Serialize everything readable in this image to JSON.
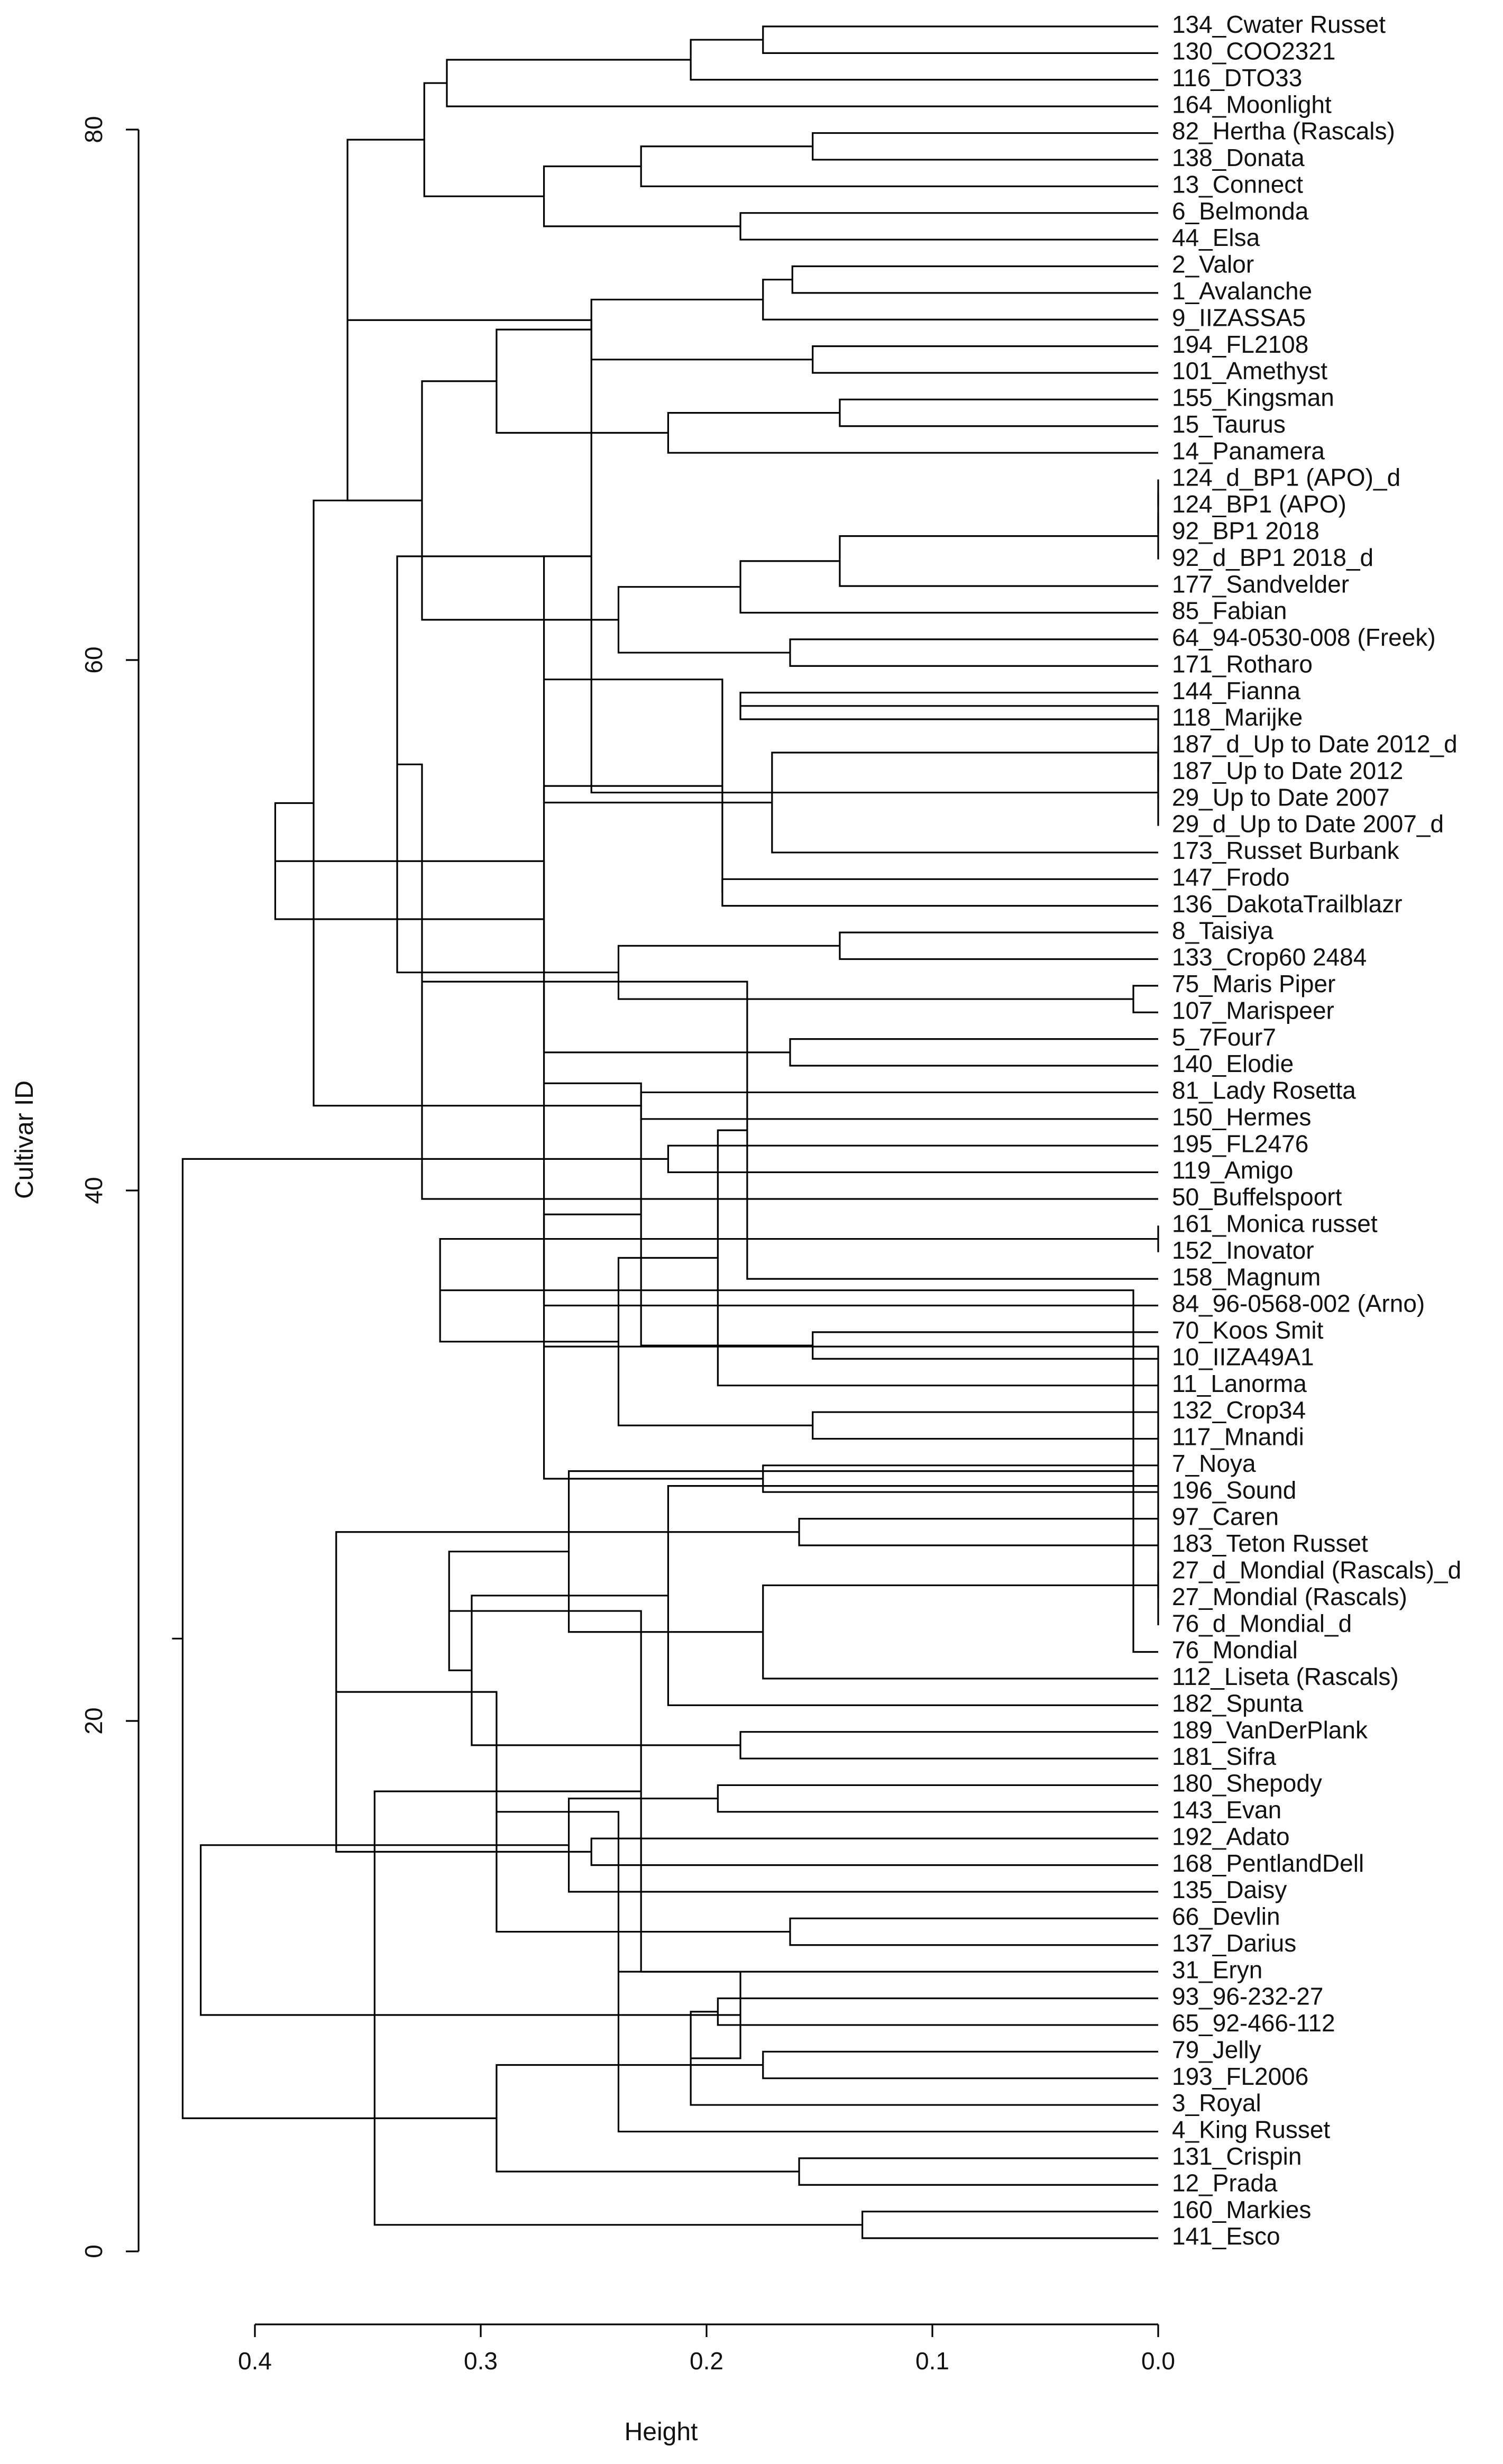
{
  "chart_data": {
    "type": "dendrogram",
    "orientation": "horizontal",
    "xlabel": "Height",
    "ylabel": "Cultivar ID",
    "x_ticks": [
      0.4,
      0.3,
      0.2,
      0.1,
      0.0
    ],
    "x_tick_labels": [
      "0.4",
      "0.3",
      "0.2",
      "0.1",
      "0.0"
    ],
    "y_ticks": [
      0,
      20,
      40,
      60,
      80
    ],
    "y_tick_labels": [
      "0",
      "20",
      "40",
      "60",
      "80"
    ],
    "x_range": [
      0.4,
      0.0
    ],
    "y_range": [
      0,
      80
    ],
    "leaves": [
      "134_Cwater Russet",
      "130_COO2321",
      "116_DTO33",
      "164_Moonlight",
      "82_Hertha (Rascals)",
      "138_Donata",
      "13_Connect",
      "6_Belmonda",
      "44_Elsa",
      "2_Valor",
      "1_Avalanche",
      "9_IIZASSA5",
      "194_FL2108",
      "101_Amethyst",
      "155_Kingsman",
      "15_Taurus",
      "14_Panamera",
      "124_d_BP1 (APO)_d",
      "124_BP1 (APO)",
      "92_BP1 2018",
      "92_d_BP1 2018_d",
      "177_Sandvelder",
      "85_Fabian",
      "64_94-0530-008 (Freek)",
      "171_Rotharo",
      "144_Fianna",
      "118_Marijke",
      "187_d_Up to Date 2012_d",
      "187_Up to Date 2012",
      "29_Up to Date 2007",
      "29_d_Up to Date 2007_d",
      "173_Russet Burbank",
      "147_Frodo",
      "136_DakotaTrailblazr",
      "8_Taisiya",
      "133_Crop60 2484",
      "75_Maris Piper",
      "107_Marispeer",
      "5_7Four7",
      "140_Elodie",
      "81_Lady Rosetta",
      "150_Hermes",
      "195_FL2476",
      "119_Amigo",
      "50_Buffelspoort",
      "161_Monica russet",
      "152_Inovator",
      "158_Magnum",
      "84_96-0568-002 (Arno)",
      "70_Koos Smit",
      "10_IIZA49A1",
      "11_Lanorma",
      "132_Crop34",
      "117_Mnandi",
      "7_Noya",
      "196_Sound",
      "97_Caren",
      "183_Teton Russet",
      "27_d_Mondial (Rascals)_d",
      "27_Mondial (Rascals)",
      "76_d_Mondial_d",
      "76_Mondial",
      "112_Liseta (Rascals)",
      "182_Spunta",
      "189_VanDerPlank",
      "181_Sifra",
      "180_Shepody",
      "143_Evan",
      "192_Adato",
      "168_PentlandDell",
      "135_Daisy",
      "66_Devlin",
      "137_Darius",
      "31_Eryn",
      "93_96-232-27",
      "65_92-466-112",
      "79_Jelly",
      "193_FL2006",
      "3_Royal",
      "4_King Russet",
      "131_Crispin",
      "12_Prada",
      "160_Markies",
      "141_Esco"
    ],
    "merges": [
      [
        0,
        1,
        0.175
      ],
      [
        84,
        2,
        0.207
      ],
      [
        85,
        3,
        0.315
      ],
      [
        4,
        5,
        0.153
      ],
      [
        87,
        6,
        0.229
      ],
      [
        7,
        8,
        0.185
      ],
      [
        88,
        89,
        0.272
      ],
      [
        86,
        90,
        0.325
      ],
      [
        9,
        10,
        0.162
      ],
      [
        92,
        11,
        0.175
      ],
      [
        12,
        13,
        0.153
      ],
      [
        93,
        94,
        0.251
      ],
      [
        14,
        15,
        0.141
      ],
      [
        96,
        16,
        0.217
      ],
      [
        95,
        97,
        0.293
      ],
      [
        17,
        18,
        0.0
      ],
      [
        99,
        19,
        0.0
      ],
      [
        100,
        20,
        0.0
      ],
      [
        101,
        21,
        0.141
      ],
      [
        102,
        22,
        0.185
      ],
      [
        23,
        24,
        0.163
      ],
      [
        103,
        104,
        0.239
      ],
      [
        98,
        105,
        0.326
      ],
      [
        91,
        106,
        0.359
      ],
      [
        25,
        26,
        0.185
      ],
      [
        27,
        28,
        0.0
      ],
      [
        108,
        29,
        0.0
      ],
      [
        109,
        30,
        0.0
      ],
      [
        110,
        31,
        0.171
      ],
      [
        107,
        111,
        0.251
      ],
      [
        32,
        33,
        0.193
      ],
      [
        112,
        113,
        0.272
      ],
      [
        34,
        35,
        0.141
      ],
      [
        36,
        37,
        0.011
      ],
      [
        114,
        115,
        0.193
      ],
      [
        38,
        39,
        0.163
      ],
      [
        116,
        117,
        0.239
      ],
      [
        40,
        41,
        0.229
      ],
      [
        118,
        119,
        0.272
      ],
      [
        113,
        120,
        0.337
      ],
      [
        106,
        121,
        0.374
      ],
      [
        42,
        43,
        0.217
      ],
      [
        123,
        44,
        0.326
      ],
      [
        122,
        124,
        0.391
      ],
      [
        45,
        46,
        0.0
      ],
      [
        126,
        47,
        0.182
      ],
      [
        127,
        48,
        0.272
      ],
      [
        49,
        50,
        0.153
      ],
      [
        129,
        51,
        0.195
      ],
      [
        52,
        53,
        0.153
      ],
      [
        130,
        131,
        0.229
      ],
      [
        54,
        55,
        0.175
      ],
      [
        132,
        133,
        0.239
      ],
      [
        56,
        57,
        0.159
      ],
      [
        134,
        135,
        0.272
      ],
      [
        128,
        136,
        0.318
      ],
      [
        58,
        59,
        0.0
      ],
      [
        138,
        60,
        0.0
      ],
      [
        139,
        61,
        0.011
      ],
      [
        140,
        62,
        0.175
      ],
      [
        141,
        63,
        0.217
      ],
      [
        64,
        65,
        0.185
      ],
      [
        142,
        143,
        0.261
      ],
      [
        66,
        67,
        0.195
      ],
      [
        144,
        145,
        0.304
      ],
      [
        68,
        69,
        0.251
      ],
      [
        147,
        70,
        0.261
      ],
      [
        146,
        148,
        0.314
      ],
      [
        137,
        149,
        0.364
      ],
      [
        71,
        72,
        0.163
      ],
      [
        151,
        73,
        0.229
      ],
      [
        74,
        75,
        0.195
      ],
      [
        152,
        153,
        0.293
      ],
      [
        76,
        77,
        0.175
      ],
      [
        155,
        78,
        0.207
      ],
      [
        156,
        79,
        0.239
      ],
      [
        80,
        81,
        0.159
      ],
      [
        82,
        83,
        0.131
      ],
      [
        158,
        159,
        0.185
      ],
      [
        157,
        160,
        0.293
      ],
      [
        154,
        161,
        0.347
      ],
      [
        150,
        162,
        0.424
      ],
      [
        125,
        163,
        0.432
      ]
    ]
  }
}
